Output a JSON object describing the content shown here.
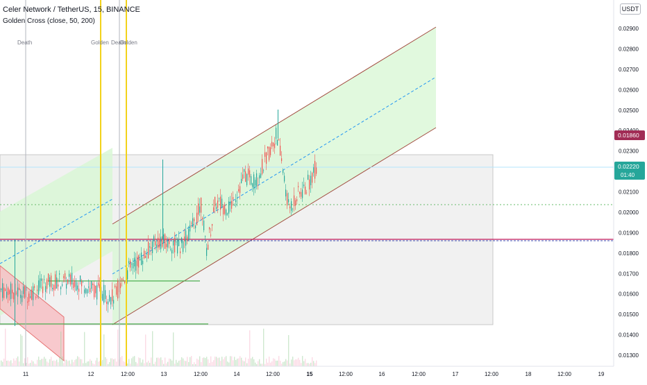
{
  "header": {
    "title": "Celer Network / TetherUS, 15, BINANCE",
    "indicator": "Golden Cross (close, 50, 200)",
    "currency": "USDT"
  },
  "markers": [
    "Death",
    "Golden",
    "Death",
    "Golden"
  ],
  "colors": {
    "up": "#26a69a",
    "down": "#ef5350",
    "golden_line": "#f2d21b",
    "death_line": "#b2b5be",
    "channel_fill": "#d9f7d6",
    "channel_border": "#a14a3e",
    "channel_mid": "#2196f3",
    "red_channel": "#f7bfc4",
    "level_green": "#4caf50",
    "hline_red": "#c2185b",
    "hline_blue": "#3f51b5",
    "price_badge_red": "#a12c55",
    "price_badge_teal": "#26a69a"
  },
  "chart_data": {
    "type": "candlestick",
    "symbol": "Celer Network / TetherUS",
    "timeframe": "15",
    "exchange": "BINANCE",
    "indicator": "Golden Cross (close, 50, 200)",
    "y_axis": {
      "ticks": [
        "0.02900",
        "0.02800",
        "0.02700",
        "0.02600",
        "0.02500",
        "0.02400",
        "0.02300",
        "0.02200",
        "0.02100",
        "0.02000",
        "0.01900",
        "0.01800",
        "0.01700",
        "0.01600",
        "0.01500",
        "0.01400",
        "0.01300"
      ],
      "range": [
        0.0125,
        0.0301
      ]
    },
    "x_axis": {
      "ticks": [
        "11",
        "12",
        "12:00",
        "13",
        "12:00",
        "14",
        "12:00",
        "15",
        "12:00",
        "16",
        "12:00",
        "17",
        "12:00",
        "18",
        "12:00",
        "19"
      ]
    },
    "price_labels": [
      {
        "value": "0.01860",
        "color": "#a12c55"
      },
      {
        "value": "0.02220",
        "countdown": "01:40",
        "color": "#26a69a"
      }
    ],
    "approx_close_path": [
      {
        "x": "11",
        "y": 0.0162
      },
      {
        "x": "12",
        "y": 0.0166
      },
      {
        "x": "12:00",
        "y": 0.0175
      },
      {
        "x": "13",
        "y": 0.0185
      },
      {
        "x": "12:00",
        "y": 0.0205
      },
      {
        "x": "14",
        "y": 0.0218
      },
      {
        "x": "12:00",
        "y": 0.024
      },
      {
        "x": "15",
        "y": 0.0222
      }
    ],
    "signals": [
      "Death",
      "Golden",
      "Death",
      "Golden"
    ]
  }
}
